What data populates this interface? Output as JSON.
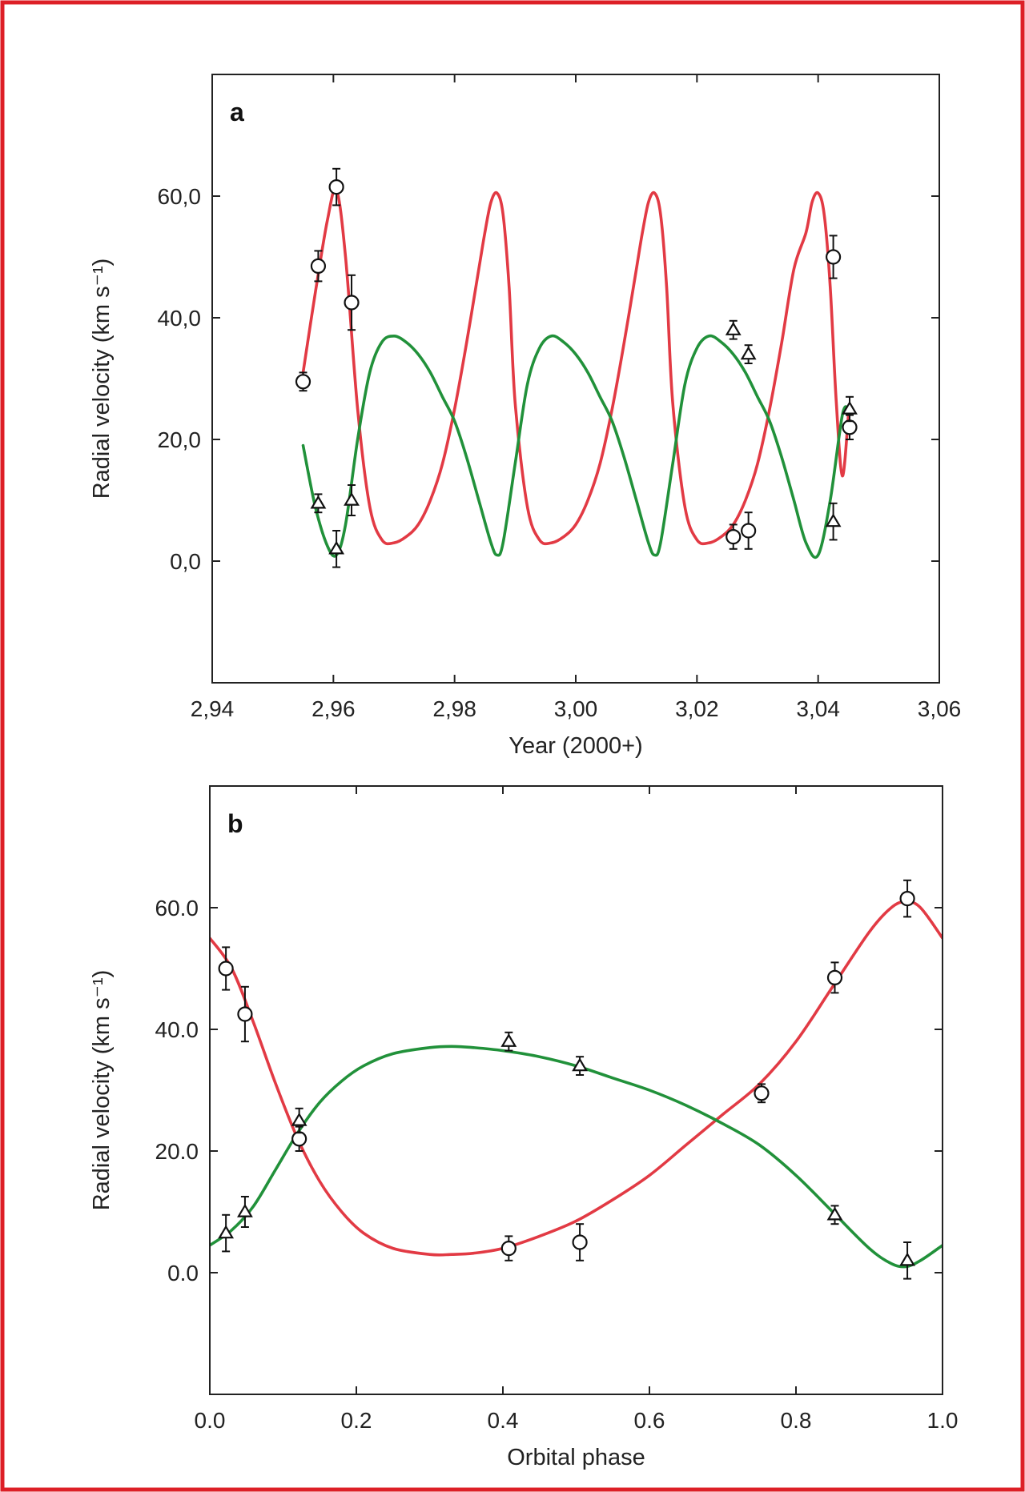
{
  "colors": {
    "frame": "#dd1f26",
    "primary_curve": "#e23a44",
    "secondary_curve": "#21913a",
    "axis": "#222222",
    "marker": "#111111"
  },
  "chart_data": [
    {
      "type": "scatter",
      "panel_label": "a",
      "xlabel": "Year (2000+)",
      "ylabel": "Radial velocity (km s⁻¹)",
      "xlim": [
        2.94,
        3.06
      ],
      "ylim": [
        -20,
        80
      ],
      "x_ticks": [
        2.94,
        2.96,
        2.98,
        3.0,
        3.02,
        3.04,
        3.06
      ],
      "x_tick_labels": [
        "2,94",
        "2,96",
        "2,98",
        "3,00",
        "3,02",
        "3,04",
        "3,06"
      ],
      "y_ticks": [
        0,
        20,
        40,
        60
      ],
      "y_tick_labels": [
        "0,0",
        "20,0",
        "40,0",
        "60,0"
      ],
      "grid": false,
      "curves": [
        {
          "color": "primary_curve",
          "x": [
            2.955,
            2.957,
            2.959,
            2.9605,
            2.962,
            2.964,
            2.966,
            2.968,
            2.97,
            2.972,
            2.974,
            2.976,
            2.978,
            2.98,
            2.982,
            2.984,
            2.985,
            2.986,
            2.987,
            2.988,
            2.989,
            2.99,
            2.992,
            2.994,
            2.996,
            2.998,
            3.0,
            3.002,
            3.004,
            3.006,
            3.008,
            3.01,
            3.011,
            3.012,
            3.013,
            3.014,
            3.015,
            3.016,
            3.018,
            3.02,
            3.022,
            3.024,
            3.026,
            3.028,
            3.03,
            3.032,
            3.034,
            3.036,
            3.038,
            3.039,
            3.04,
            3.041,
            3.042,
            3.043,
            3.044,
            3.045
          ],
          "y": [
            31,
            44,
            56,
            61,
            50,
            25,
            9,
            3.5,
            3,
            4,
            6,
            10,
            16,
            25,
            36,
            48,
            54,
            59,
            60.5,
            57,
            45,
            26,
            9,
            3.5,
            3,
            4,
            6,
            10,
            16,
            25,
            36,
            48,
            54,
            59,
            60.5,
            57,
            45,
            26,
            9,
            3.5,
            3,
            4,
            6,
            10,
            16,
            25,
            36,
            48,
            54,
            59,
            60.5,
            57,
            45,
            26,
            14,
            24
          ]
        },
        {
          "color": "secondary_curve",
          "x": [
            2.955,
            2.957,
            2.959,
            2.9605,
            2.962,
            2.964,
            2.966,
            2.968,
            2.97,
            2.972,
            2.974,
            2.976,
            2.978,
            2.98,
            2.982,
            2.984,
            2.986,
            2.987,
            2.988,
            2.99,
            2.992,
            2.994,
            2.996,
            2.998,
            3.0,
            3.002,
            3.004,
            3.006,
            3.008,
            3.01,
            3.012,
            3.013,
            3.014,
            3.016,
            3.018,
            3.02,
            3.022,
            3.024,
            3.026,
            3.028,
            3.03,
            3.032,
            3.034,
            3.036,
            3.038,
            3.04,
            3.042,
            3.044,
            3.045
          ],
          "y": [
            19,
            9,
            2.5,
            1,
            6,
            20,
            31,
            36,
            37,
            36,
            34,
            31,
            27,
            23,
            17,
            10,
            3,
            1,
            3,
            16,
            29,
            35,
            37,
            36,
            34,
            31,
            27,
            23,
            17,
            10,
            3,
            1,
            3,
            16,
            29,
            35,
            37,
            36,
            34,
            31,
            27,
            23,
            17,
            10,
            3,
            1,
            10,
            24,
            25
          ]
        }
      ],
      "series": [
        {
          "marker": "circle",
          "x": [
            2.955,
            2.9575,
            2.9605,
            2.963,
            3.026,
            3.0285,
            3.0425,
            3.0452
          ],
          "y": [
            29.5,
            48.5,
            61.5,
            42.5,
            4,
            5,
            50,
            22
          ],
          "err": [
            1.5,
            2.5,
            3,
            4.5,
            2,
            3,
            3.5,
            2
          ]
        },
        {
          "marker": "triangle",
          "x": [
            2.9575,
            2.9605,
            2.963,
            3.026,
            3.0285,
            3.0425,
            3.0452
          ],
          "y": [
            9.5,
            2,
            10,
            38,
            34,
            6.5,
            25
          ],
          "err": [
            1.5,
            3,
            2.5,
            1.5,
            1.5,
            3,
            2
          ]
        }
      ]
    },
    {
      "type": "scatter",
      "panel_label": "b",
      "xlabel": "Orbital phase",
      "ylabel": "Radial velocity (km s⁻¹)",
      "xlim": [
        0.0,
        1.0
      ],
      "ylim": [
        -20,
        80
      ],
      "x_ticks": [
        0.0,
        0.2,
        0.4,
        0.6,
        0.8,
        1.0
      ],
      "x_tick_labels": [
        "0.0",
        "0.2",
        "0.4",
        "0.6",
        "0.8",
        "1.0"
      ],
      "y_ticks": [
        0,
        20,
        40,
        60
      ],
      "y_tick_labels": [
        "0.0",
        "20.0",
        "40.0",
        "60.0"
      ],
      "grid": false,
      "curves": [
        {
          "color": "primary_curve",
          "x": [
            0,
            0.03,
            0.06,
            0.09,
            0.12,
            0.15,
            0.18,
            0.21,
            0.25,
            0.3,
            0.33,
            0.36,
            0.4,
            0.45,
            0.5,
            0.55,
            0.6,
            0.65,
            0.7,
            0.75,
            0.8,
            0.85,
            0.9,
            0.93,
            0.95,
            0.97,
            1.0
          ],
          "y": [
            55,
            50,
            41,
            31,
            22,
            15,
            10,
            6.5,
            4,
            3,
            3,
            3.2,
            4,
            6,
            8.5,
            12,
            16,
            21,
            26,
            31,
            38,
            47,
            56,
            60,
            61,
            60,
            55
          ]
        },
        {
          "color": "secondary_curve",
          "x": [
            0,
            0.03,
            0.06,
            0.09,
            0.12,
            0.15,
            0.18,
            0.21,
            0.25,
            0.3,
            0.33,
            0.36,
            0.4,
            0.45,
            0.5,
            0.55,
            0.6,
            0.65,
            0.7,
            0.75,
            0.8,
            0.85,
            0.9,
            0.93,
            0.95,
            0.97,
            1.0
          ],
          "y": [
            4.5,
            7,
            11,
            17,
            23,
            28,
            31.5,
            34,
            36,
            37,
            37.2,
            37,
            36.5,
            35.5,
            34,
            32,
            30,
            27.5,
            24.5,
            21,
            16,
            10,
            4,
            1.5,
            1,
            2,
            4.5
          ]
        }
      ],
      "series": [
        {
          "marker": "circle",
          "x": [
            0.022,
            0.048,
            0.122,
            0.408,
            0.505,
            0.753,
            0.853,
            0.952
          ],
          "y": [
            50,
            42.5,
            22,
            4,
            5,
            29.5,
            48.5,
            61.5
          ],
          "err": [
            3.5,
            4.5,
            2,
            2,
            3,
            1.5,
            2.5,
            3
          ]
        },
        {
          "marker": "triangle",
          "x": [
            0.022,
            0.048,
            0.122,
            0.408,
            0.505,
            0.853,
            0.952
          ],
          "y": [
            6.5,
            10,
            25,
            38,
            34,
            9.5,
            2
          ],
          "err": [
            3,
            2.5,
            2,
            1.5,
            1.5,
            1.5,
            3
          ]
        }
      ]
    }
  ]
}
